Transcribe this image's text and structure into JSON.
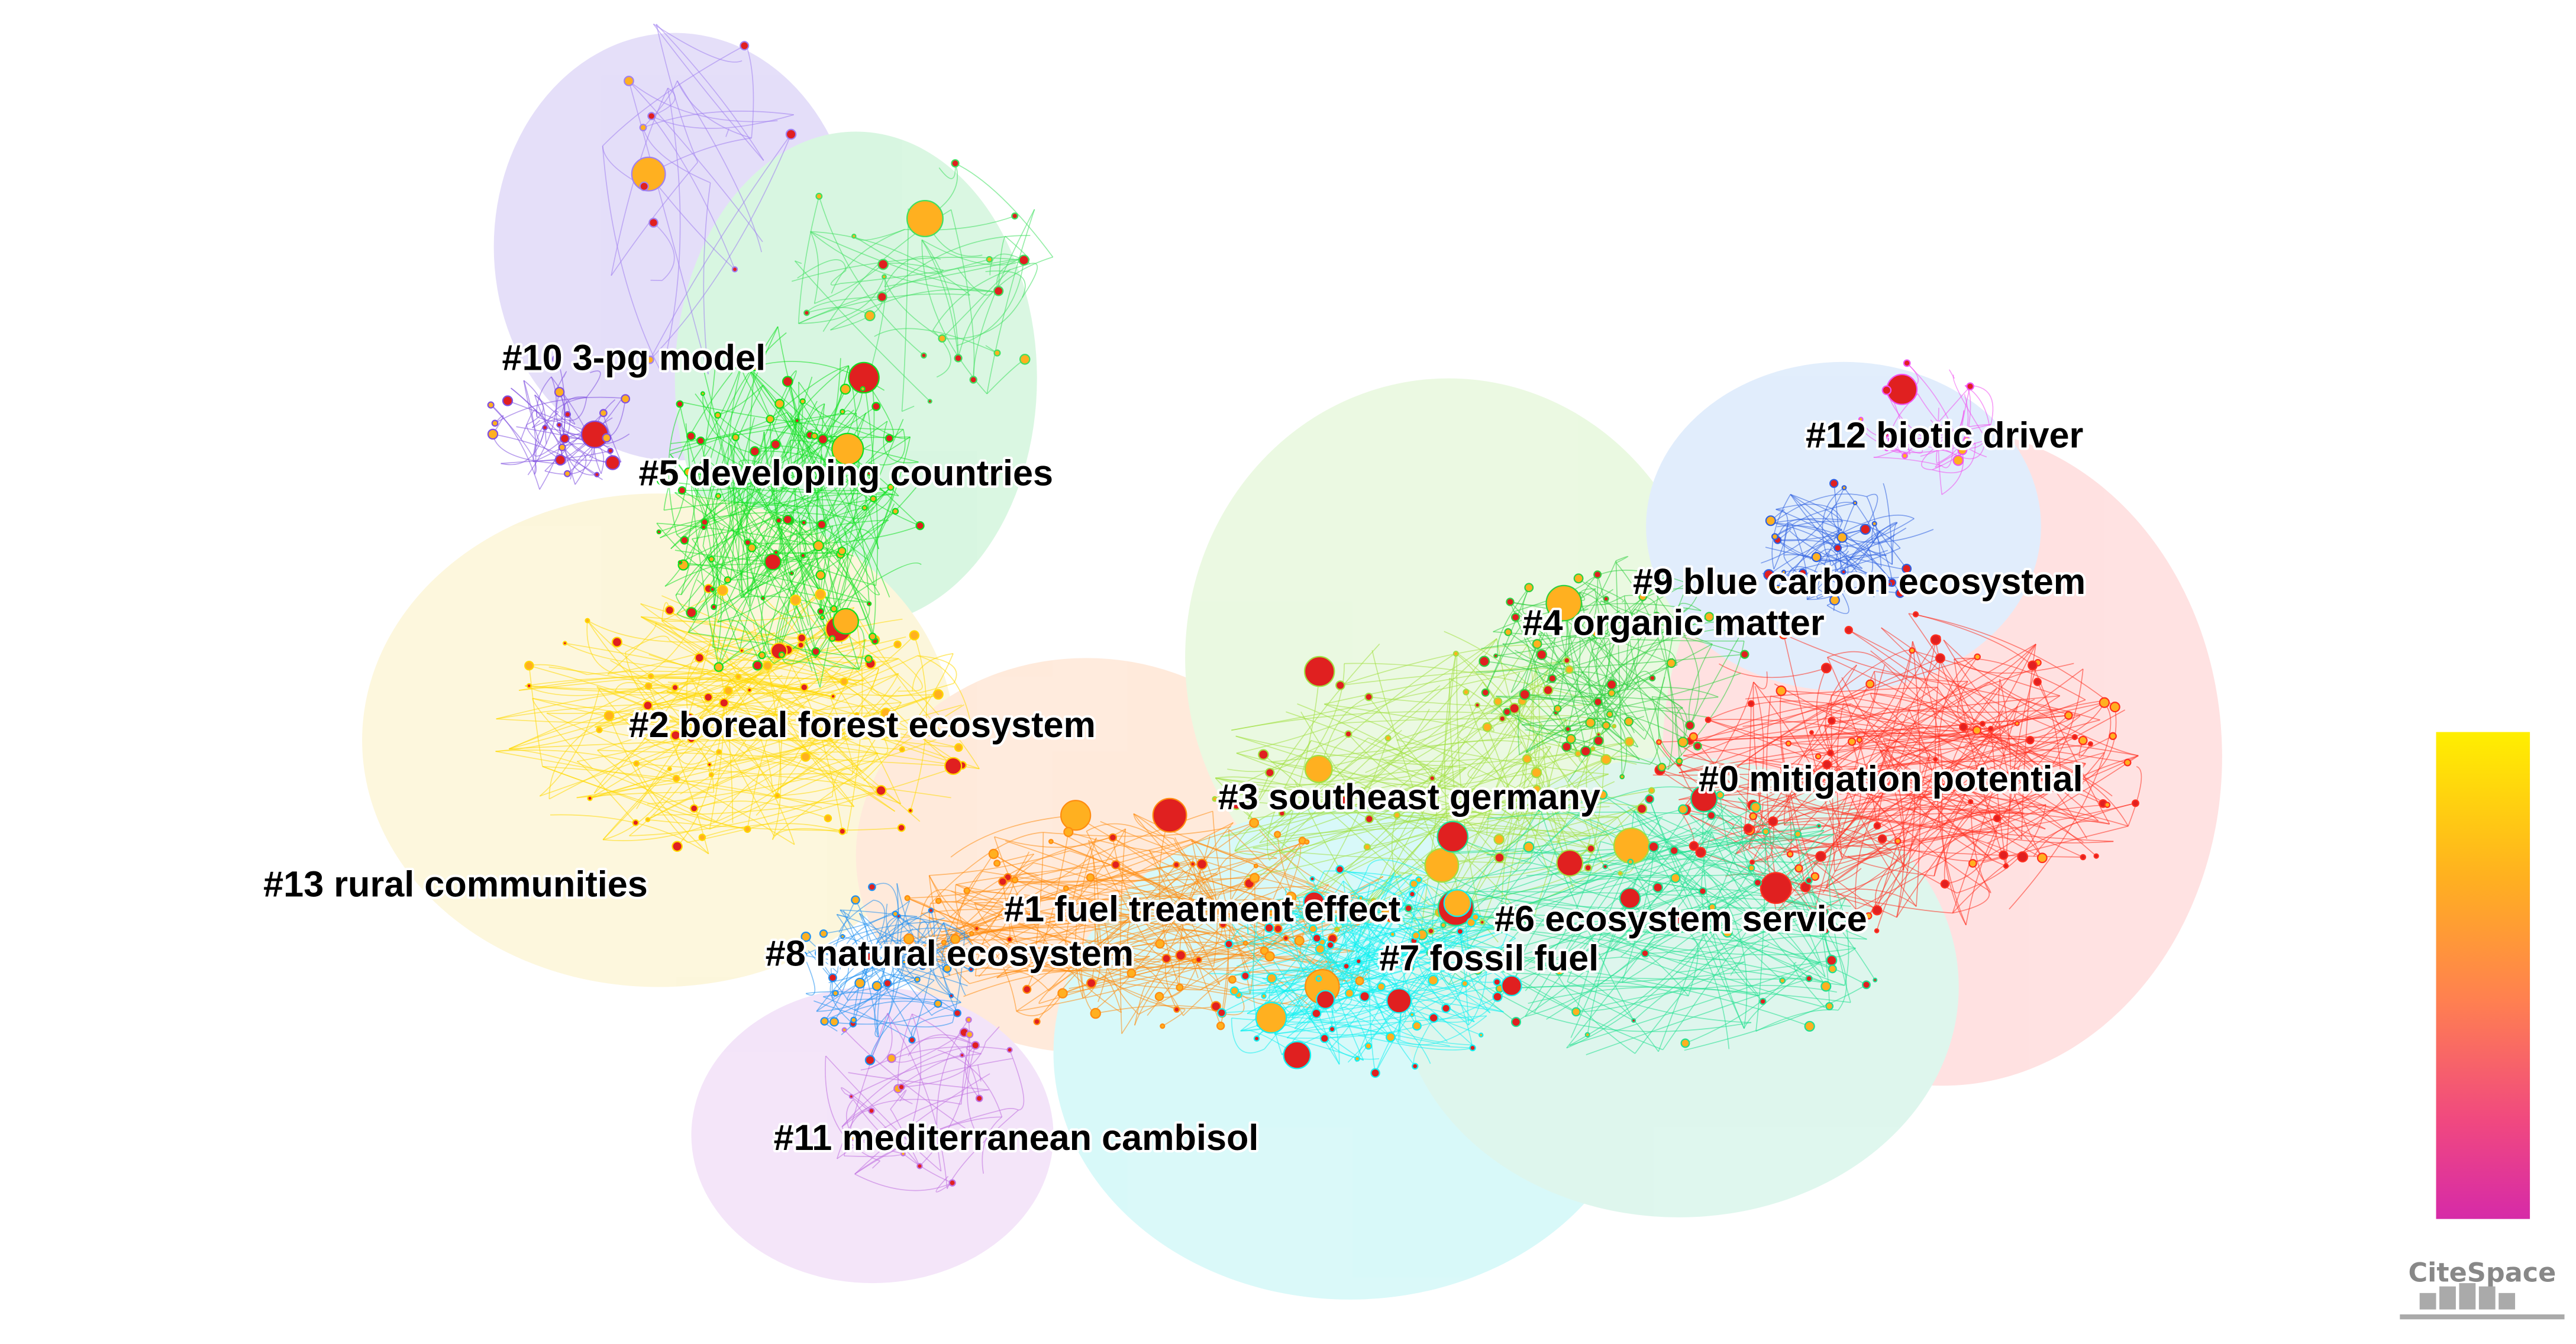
{
  "clusters": [
    "#0 mitigation potential",
    "#1 fuel treatment effect",
    "#2 boreal forest ecosystem",
    "#3 southeast germany",
    "#4 organic matter",
    "#5 developing countries",
    "#6 ecosystem service",
    "#7 fossil fuel",
    "#8 natural ecosystem",
    "#9 blue carbon ecosystem",
    "#10 3-pg model",
    "#11 mediterranean cambisol",
    "#12 biotic driver",
    "#13 rural communities"
  ],
  "logo": "CiteSpace"
}
